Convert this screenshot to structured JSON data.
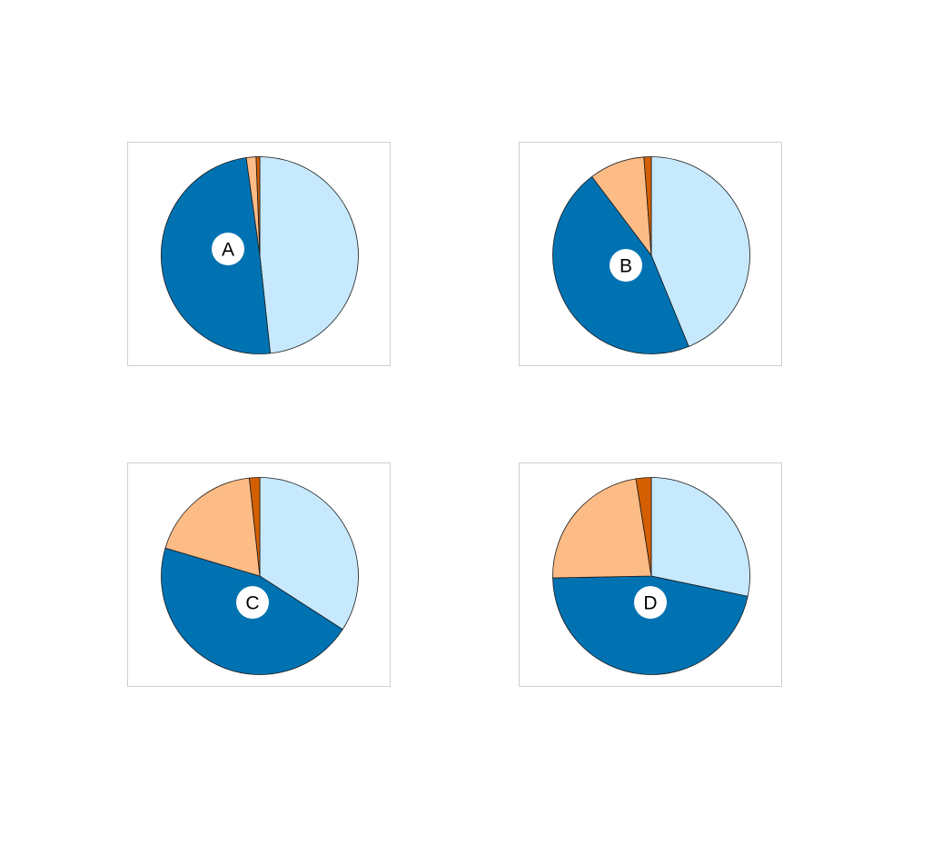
{
  "colors": {
    "series": [
      "#c6e9fd",
      "#0072b2",
      "#fdbb85",
      "#d35f00"
    ],
    "slice_stroke": "#1a1a1a",
    "label_fill": "#ffffff"
  },
  "chart_data": [
    {
      "type": "pie",
      "label": "A",
      "values": [
        48.3,
        49.5,
        1.6,
        0.6
      ],
      "start_angle_deg": 0,
      "direction": "clockwise"
    },
    {
      "type": "pie",
      "label": "B",
      "values": [
        43.8,
        45.9,
        9.1,
        1.2
      ],
      "start_angle_deg": 0,
      "direction": "clockwise"
    },
    {
      "type": "pie",
      "label": "C",
      "values": [
        34.1,
        45.5,
        18.7,
        1.7
      ],
      "start_angle_deg": 0,
      "direction": "clockwise"
    },
    {
      "type": "pie",
      "label": "D",
      "values": [
        28.3,
        46.4,
        22.8,
        2.5
      ],
      "start_angle_deg": 0,
      "direction": "clockwise"
    }
  ]
}
